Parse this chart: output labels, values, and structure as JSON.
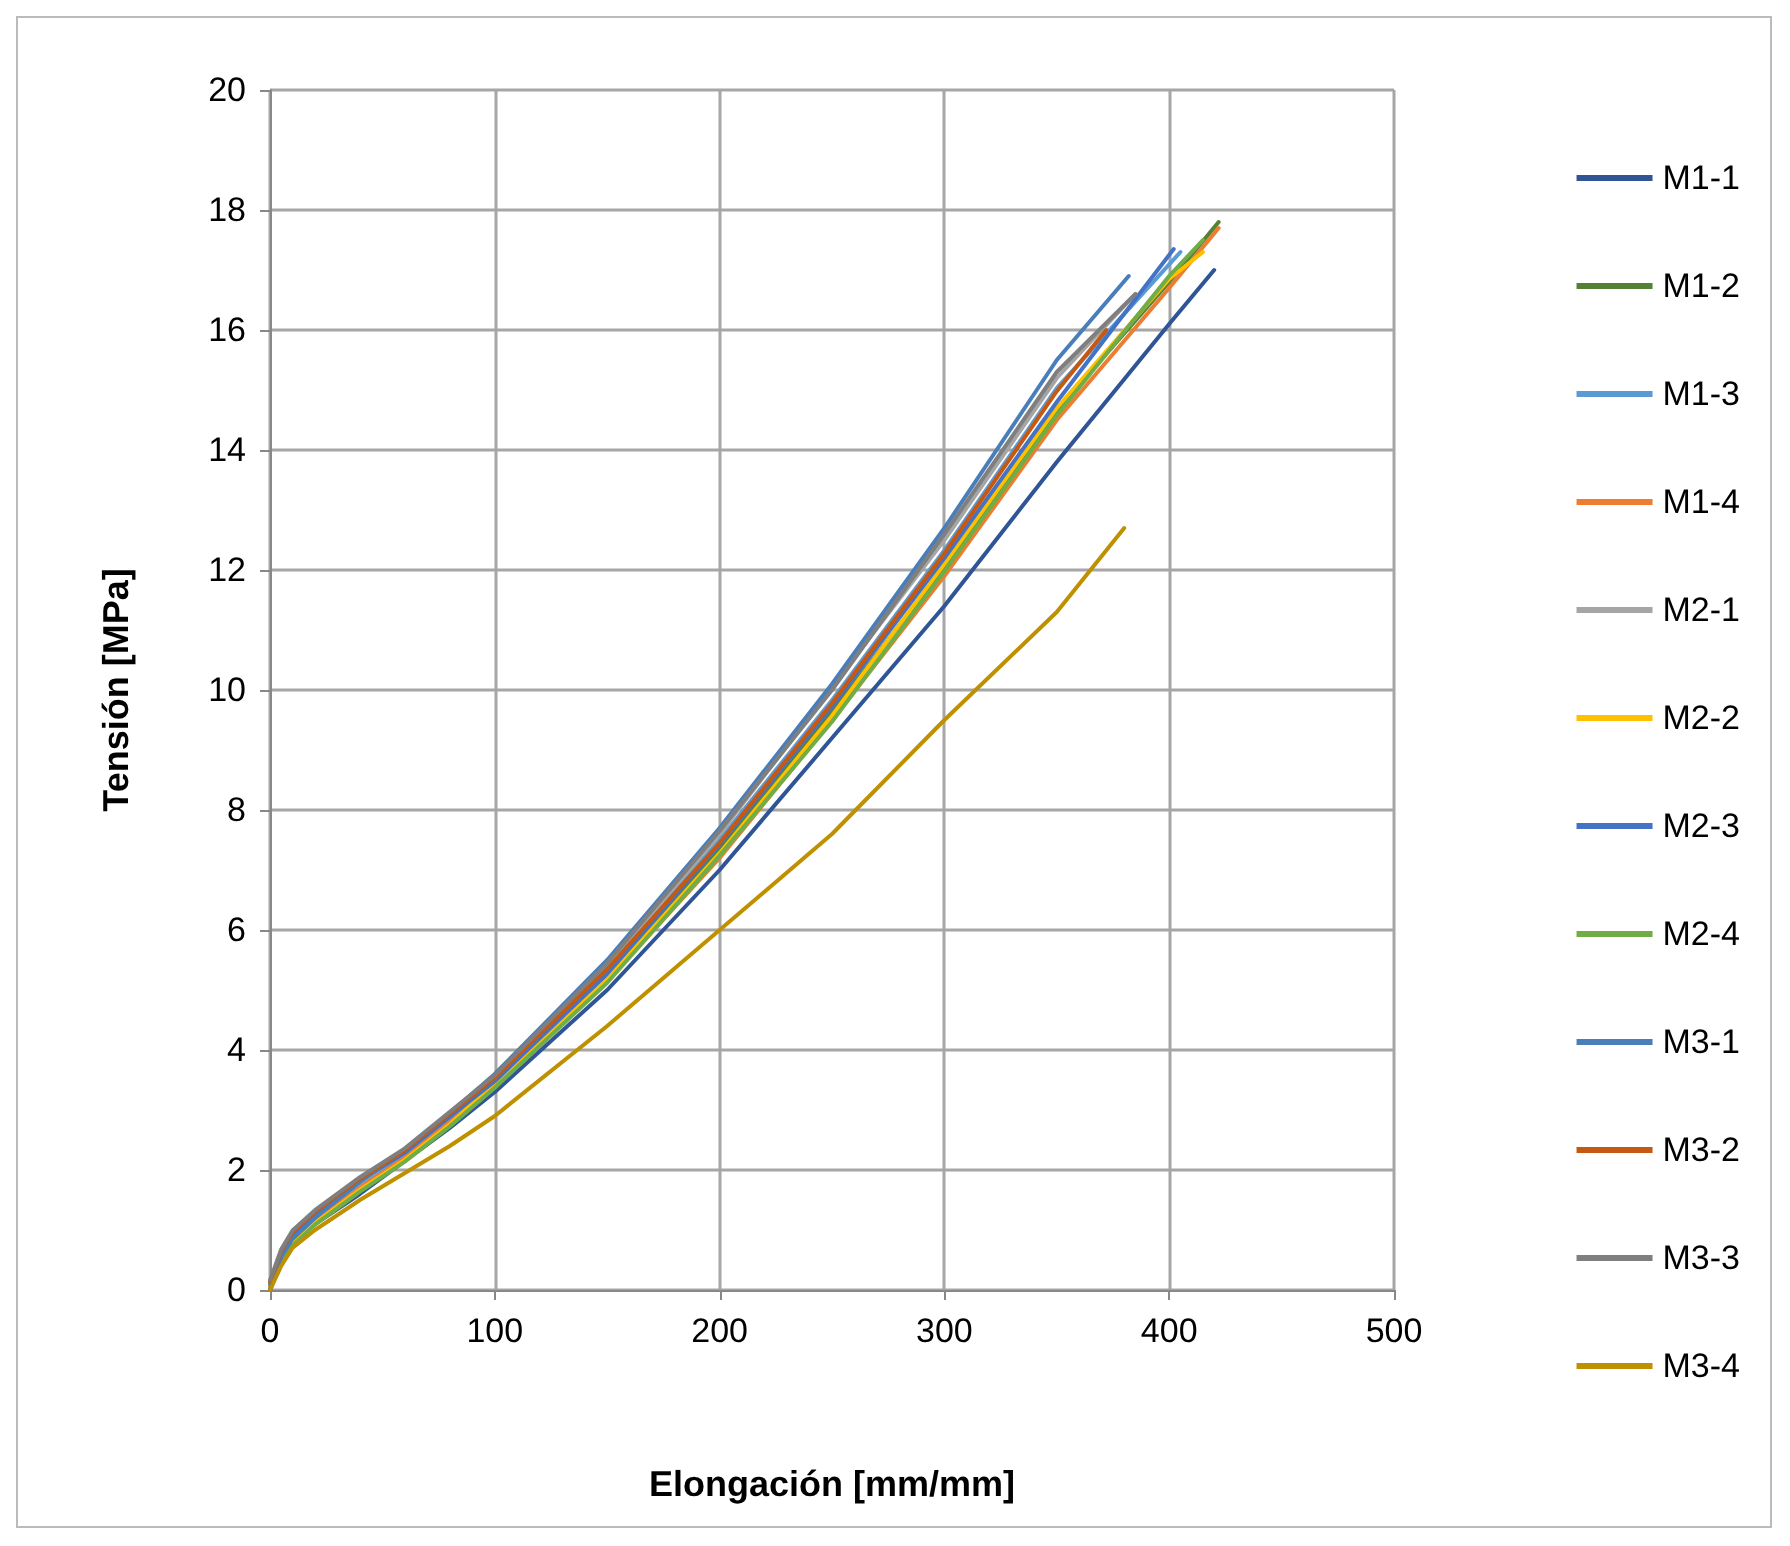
{
  "chart_data": {
    "type": "line",
    "xlabel": "Elongación [mm/mm]",
    "ylabel": "Tensión [MPa]",
    "xlim": [
      0,
      500
    ],
    "xticks": [
      0,
      100,
      200,
      300,
      400,
      500
    ],
    "ylim": [
      0,
      20
    ],
    "yticks": [
      0,
      2,
      4,
      6,
      8,
      10,
      12,
      14,
      16,
      18,
      20
    ],
    "grid": true,
    "legend": "right",
    "marker": "none",
    "line_style": "solid",
    "series": [
      {
        "name": "M1-1",
        "color": "#2f5597",
        "x": [
          0,
          5,
          10,
          20,
          40,
          60,
          80,
          100,
          150,
          200,
          250,
          300,
          350,
          400,
          420
        ],
        "values": [
          0,
          0.45,
          0.75,
          1.1,
          1.6,
          2.15,
          2.7,
          3.3,
          5.0,
          7.0,
          9.2,
          11.4,
          13.8,
          16.1,
          17.0
        ]
      },
      {
        "name": "M1-2",
        "color": "#548235",
        "x": [
          0,
          5,
          10,
          20,
          40,
          60,
          80,
          100,
          150,
          200,
          250,
          300,
          350,
          400,
          422
        ],
        "values": [
          0.02,
          0.53,
          0.84,
          1.18,
          1.73,
          2.24,
          2.83,
          3.43,
          5.22,
          7.33,
          9.63,
          12.05,
          14.66,
          16.8,
          17.8
        ]
      },
      {
        "name": "M1-3",
        "color": "#5b9bd5",
        "x": [
          0,
          5,
          10,
          20,
          40,
          60,
          80,
          100,
          150,
          200,
          250,
          300,
          350,
          405
        ],
        "values": [
          0.04,
          0.56,
          0.87,
          1.21,
          1.76,
          2.27,
          2.87,
          3.52,
          5.33,
          7.5,
          9.83,
          12.33,
          15.03,
          17.3
        ]
      },
      {
        "name": "M1-4",
        "color": "#ed7d31",
        "x": [
          0,
          5,
          10,
          20,
          40,
          60,
          80,
          100,
          150,
          200,
          250,
          300,
          350,
          400,
          422
        ],
        "values": [
          0,
          0.5,
          0.8,
          1.15,
          1.7,
          2.2,
          2.8,
          3.4,
          5.15,
          7.2,
          9.5,
          11.9,
          14.5,
          16.7,
          17.7
        ]
      },
      {
        "name": "M2-1",
        "color": "#a5a5a5",
        "x": [
          0,
          5,
          10,
          20,
          40,
          60,
          80,
          100,
          150,
          200,
          250,
          300,
          350,
          385
        ],
        "values": [
          0.06,
          0.59,
          0.9,
          1.24,
          1.79,
          2.31,
          2.92,
          3.57,
          5.4,
          7.6,
          10.05,
          12.5,
          15.2,
          16.6
        ]
      },
      {
        "name": "M2-2",
        "color": "#ffc000",
        "x": [
          0,
          5,
          10,
          20,
          40,
          60,
          80,
          100,
          150,
          200,
          250,
          300,
          350,
          400,
          415
        ],
        "values": [
          0.08,
          0.47,
          0.77,
          1.12,
          1.67,
          2.17,
          2.76,
          3.46,
          5.18,
          7.28,
          9.57,
          12.1,
          14.7,
          16.85,
          17.3
        ]
      },
      {
        "name": "M2-3",
        "color": "#4472c4",
        "x": [
          0,
          5,
          10,
          20,
          40,
          60,
          80,
          100,
          150,
          200,
          250,
          300,
          350,
          402
        ],
        "values": [
          0.1,
          0.62,
          0.93,
          1.27,
          1.82,
          2.29,
          2.89,
          3.48,
          5.27,
          7.42,
          9.72,
          12.2,
          14.8,
          17.35
        ]
      },
      {
        "name": "M2-4",
        "color": "#70ad47",
        "x": [
          0,
          5,
          10,
          20,
          40,
          60,
          80,
          100,
          150,
          200,
          250,
          300,
          350,
          400,
          415
        ],
        "values": [
          0.12,
          0.44,
          0.74,
          1.09,
          1.64,
          2.14,
          2.73,
          3.37,
          5.12,
          7.24,
          9.47,
          11.98,
          14.58,
          16.9,
          17.5
        ]
      },
      {
        "name": "M3-1",
        "color": "#4a7ebb",
        "x": [
          0,
          5,
          10,
          20,
          40,
          60,
          80,
          100,
          150,
          200,
          250,
          300,
          350,
          382
        ],
        "values": [
          0,
          0.55,
          0.85,
          1.2,
          1.8,
          2.35,
          2.95,
          3.6,
          5.5,
          7.7,
          10.1,
          12.7,
          15.5,
          16.9
        ]
      },
      {
        "name": "M3-2",
        "color": "#c65911",
        "x": [
          0,
          5,
          10,
          20,
          40,
          60,
          80,
          100,
          150,
          200,
          250,
          300,
          350,
          372
        ],
        "values": [
          0.14,
          0.65,
          0.96,
          1.3,
          1.85,
          2.33,
          2.94,
          3.54,
          5.35,
          7.45,
          9.78,
          12.28,
          14.98,
          16.0
        ]
      },
      {
        "name": "M3-3",
        "color": "#7f7f7f",
        "x": [
          0,
          5,
          10,
          20,
          40,
          60,
          80,
          100,
          150,
          200,
          250,
          300,
          350,
          385
        ],
        "values": [
          0.16,
          0.68,
          0.99,
          1.33,
          1.88,
          2.36,
          2.97,
          3.58,
          5.45,
          7.65,
          10.0,
          12.6,
          15.3,
          16.6
        ]
      },
      {
        "name": "M3-4",
        "color": "#bf9000",
        "x": [
          0,
          5,
          10,
          20,
          40,
          60,
          80,
          100,
          150,
          200,
          250,
          300,
          350,
          380
        ],
        "values": [
          0,
          0.4,
          0.7,
          1.0,
          1.5,
          1.95,
          2.4,
          2.9,
          4.4,
          6.0,
          7.6,
          9.5,
          11.3,
          12.7
        ]
      }
    ]
  }
}
